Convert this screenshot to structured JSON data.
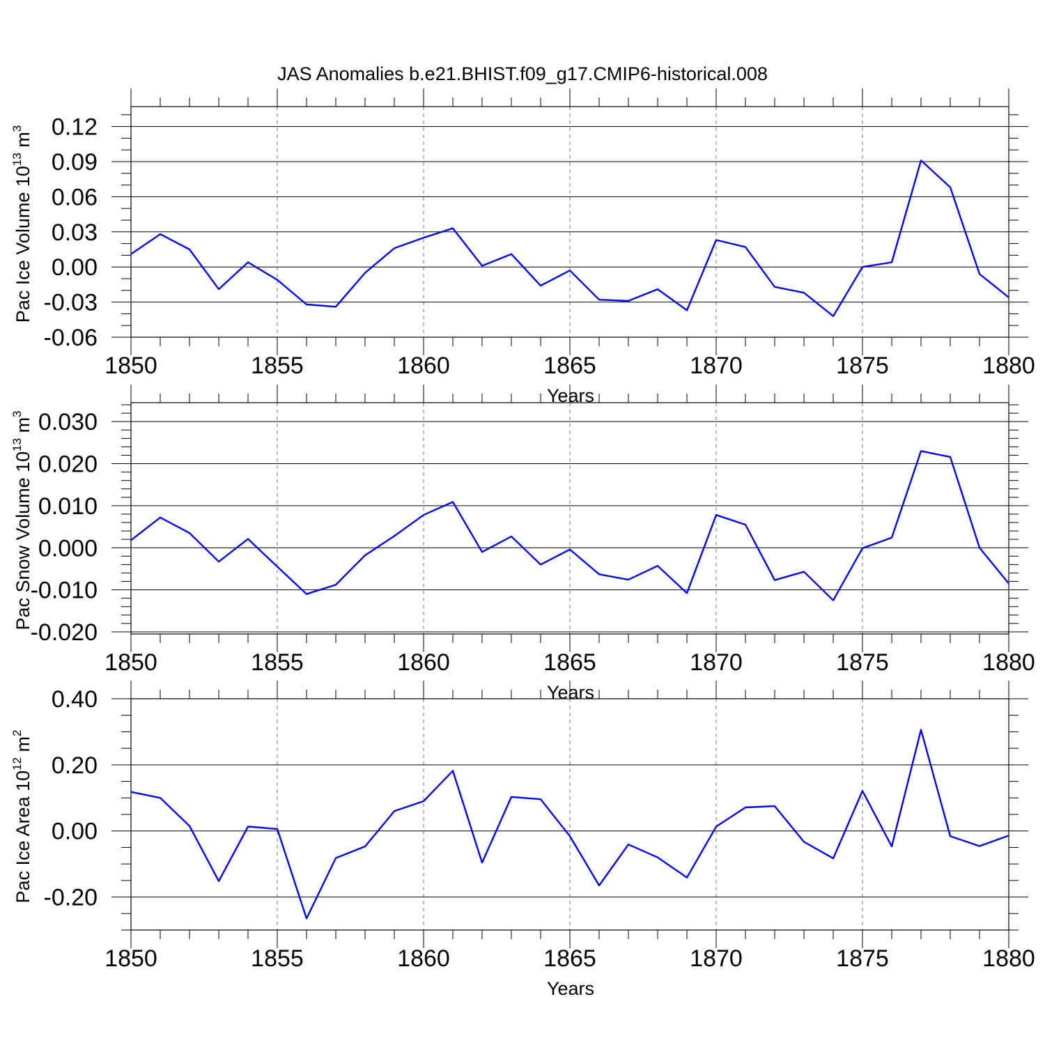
{
  "title": "JAS Anomalies b.e21.BHIST.f09_g17.CMIP6-historical.008",
  "colors": {
    "series": "#0000ff",
    "axis": "#000000",
    "grid": "#777777"
  },
  "chart_data": [
    {
      "type": "line",
      "ylabel_main": "Pac Ice Volume 10",
      "ylabel_exp": "13",
      "ylabel_unit": " m",
      "ylabel_unit_exp": "3",
      "xlabel": "Years",
      "xlim": [
        1850,
        1880
      ],
      "ylim": [
        -0.06,
        0.137
      ],
      "x_ticks": [
        1850,
        1855,
        1860,
        1865,
        1870,
        1875,
        1880
      ],
      "x_tick_labels": [
        "1850",
        "1855",
        "1860",
        "1865",
        "1870",
        "1875",
        "1880"
      ],
      "y_ticks": [
        0.12,
        0.09,
        0.06,
        0.03,
        0.0,
        -0.03,
        -0.06
      ],
      "y_tick_labels": [
        "0.12",
        "0.09",
        "0.06",
        "0.03",
        "0.00",
        "-0.03",
        "-0.06"
      ],
      "y_minor_step": 0.01,
      "x": [
        1850,
        1851,
        1852,
        1853,
        1854,
        1855,
        1856,
        1857,
        1858,
        1859,
        1860,
        1861,
        1862,
        1863,
        1864,
        1865,
        1866,
        1867,
        1868,
        1869,
        1870,
        1871,
        1872,
        1873,
        1874,
        1875,
        1876,
        1877,
        1878,
        1879,
        1880
      ],
      "values": [
        0.011,
        0.028,
        0.015,
        -0.019,
        0.004,
        -0.011,
        -0.032,
        -0.034,
        -0.005,
        0.016,
        0.025,
        0.033,
        0.001,
        0.011,
        -0.016,
        -0.003,
        -0.028,
        -0.029,
        -0.019,
        -0.037,
        0.023,
        0.017,
        -0.017,
        -0.022,
        -0.042,
        0.0,
        0.004,
        0.091,
        0.068,
        -0.006,
        -0.026
      ]
    },
    {
      "type": "line",
      "ylabel_main": "Pac Snow Volume 10",
      "ylabel_exp": "13",
      "ylabel_unit": " m",
      "ylabel_unit_exp": "3",
      "xlabel": "Years",
      "xlim": [
        1850,
        1880
      ],
      "ylim": [
        -0.0205,
        0.0345
      ],
      "x_ticks": [
        1850,
        1855,
        1860,
        1865,
        1870,
        1875,
        1880
      ],
      "x_tick_labels": [
        "1850",
        "1855",
        "1860",
        "1865",
        "1870",
        "1875",
        "1880"
      ],
      "y_ticks": [
        0.03,
        0.02,
        0.01,
        0.0,
        -0.01,
        -0.02
      ],
      "y_tick_labels": [
        "0.030",
        "0.020",
        "0.010",
        "0.000",
        "-0.010",
        "-0.020"
      ],
      "y_minor_step": 0.002,
      "x": [
        1850,
        1851,
        1852,
        1853,
        1854,
        1855,
        1856,
        1857,
        1858,
        1859,
        1860,
        1861,
        1862,
        1863,
        1864,
        1865,
        1866,
        1867,
        1868,
        1869,
        1870,
        1871,
        1872,
        1873,
        1874,
        1875,
        1876,
        1877,
        1878,
        1879,
        1880
      ],
      "values": [
        0.0018,
        0.0072,
        0.0035,
        -0.0033,
        0.0021,
        -0.0045,
        -0.011,
        -0.0088,
        -0.0018,
        0.0028,
        0.0078,
        0.0109,
        -0.001,
        0.0027,
        -0.004,
        -0.0004,
        -0.0063,
        -0.0076,
        -0.0043,
        -0.0108,
        0.0078,
        0.0055,
        -0.0077,
        -0.0057,
        -0.0125,
        -0.0001,
        0.0024,
        0.023,
        0.0216,
        0.0,
        -0.0085
      ]
    },
    {
      "type": "line",
      "ylabel_main": "Pac Ice Area 10",
      "ylabel_exp": "12",
      "ylabel_unit": " m",
      "ylabel_unit_exp": "2",
      "xlabel": "Years",
      "xlim": [
        1850,
        1880
      ],
      "ylim": [
        -0.3,
        0.4
      ],
      "x_ticks": [
        1850,
        1855,
        1860,
        1865,
        1870,
        1875,
        1880
      ],
      "x_tick_labels": [
        "1850",
        "1855",
        "1860",
        "1865",
        "1870",
        "1875",
        "1880"
      ],
      "y_ticks": [
        0.4,
        0.2,
        0.0,
        -0.2
      ],
      "y_tick_labels": [
        "0.40",
        "0.20",
        "0.00",
        "-0.20"
      ],
      "y_minor_step": 0.05,
      "x": [
        1850,
        1851,
        1852,
        1853,
        1854,
        1855,
        1856,
        1857,
        1858,
        1859,
        1860,
        1861,
        1862,
        1863,
        1864,
        1865,
        1866,
        1867,
        1868,
        1869,
        1870,
        1871,
        1872,
        1873,
        1874,
        1875,
        1876,
        1877,
        1878,
        1879,
        1880
      ],
      "values": [
        0.118,
        0.1,
        0.015,
        -0.152,
        0.013,
        0.006,
        -0.265,
        -0.082,
        -0.047,
        0.06,
        0.09,
        0.182,
        -0.096,
        0.103,
        0.096,
        -0.016,
        -0.165,
        -0.041,
        -0.08,
        -0.141,
        0.013,
        0.071,
        0.075,
        -0.033,
        -0.083,
        0.121,
        -0.047,
        0.306,
        -0.016,
        -0.046,
        -0.014
      ]
    }
  ]
}
